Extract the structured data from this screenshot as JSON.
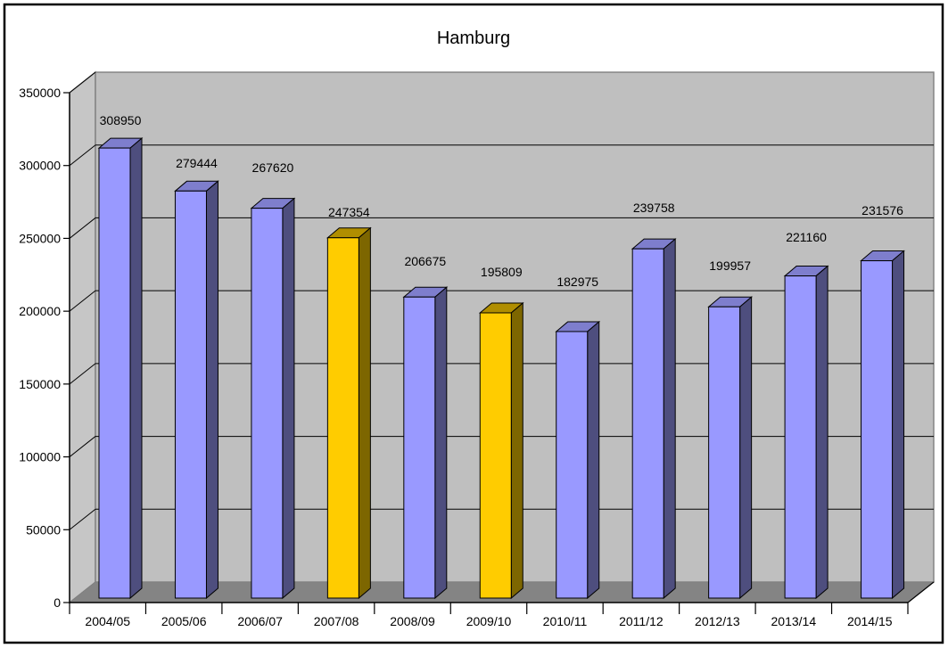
{
  "chart_data": {
    "type": "bar",
    "style": "3d-column",
    "title": "Hamburg",
    "categories": [
      "2004/05",
      "2005/06",
      "2006/07",
      "2007/08",
      "2008/09",
      "2009/10",
      "2010/11",
      "2011/12",
      "2012/13",
      "2013/14",
      "2014/15"
    ],
    "values": [
      308950,
      279444,
      267620,
      247354,
      206675,
      195809,
      182975,
      239758,
      199957,
      221160,
      231576
    ],
    "data_labels_visible": true,
    "highlight_indexes": [
      3,
      5
    ],
    "xlabel": "",
    "ylabel": "",
    "ylim": [
      0,
      350000
    ],
    "ytick_step": 50000,
    "ytick_labels": [
      "0",
      "50000",
      "100000",
      "150000",
      "200000",
      "250000",
      "300000",
      "350000"
    ],
    "grid": true,
    "legend_visible": false,
    "colors": {
      "bar_front": "#9999FF",
      "bar_top": "#7E7ECD",
      "bar_side": "#4E4E7E",
      "highlight_front": "#FFCC00",
      "highlight_top": "#B08E00",
      "highlight_side": "#7D6600",
      "back_wall": "#BFBFBF",
      "left_wall": "#C6C6C6",
      "floor": "#848484",
      "wall_edge": "#808080",
      "gridline": "#000000",
      "axis": "#000000",
      "background": "#FFFFFF",
      "border": "#000000"
    }
  }
}
